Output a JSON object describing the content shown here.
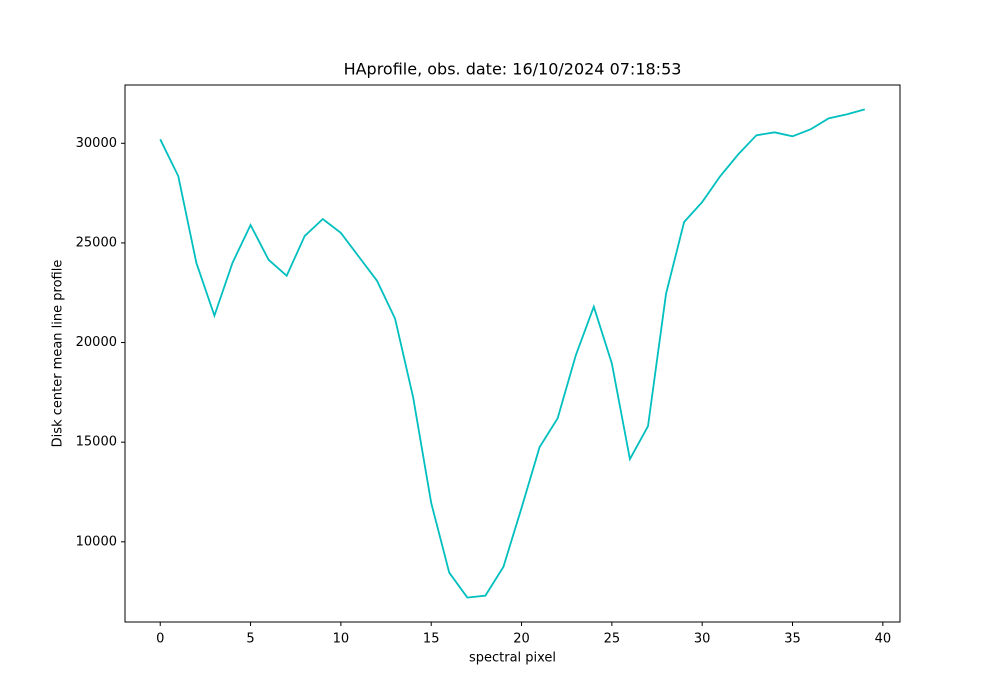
{
  "chart_data": {
    "type": "line",
    "title": "HAprofile, obs. date: 16/10/2024 07:18:53",
    "x_label": "spectral pixel",
    "y_label": "Disk center mean line profile",
    "x": [
      0,
      1,
      2,
      3,
      4,
      5,
      6,
      7,
      8,
      9,
      10,
      11,
      12,
      13,
      14,
      15,
      16,
      17,
      18,
      19,
      20,
      21,
      22,
      23,
      24,
      25,
      26,
      27,
      28,
      29,
      30,
      31,
      32,
      33,
      34,
      35,
      36,
      37,
      38,
      39
    ],
    "values": [
      30200,
      28350,
      24000,
      21350,
      24000,
      25900,
      24150,
      23350,
      25350,
      26200,
      25500,
      24300,
      23100,
      21200,
      17250,
      11950,
      8450,
      7200,
      7300,
      8750,
      11700,
      14750,
      16200,
      19350,
      21800,
      18950,
      14150,
      15800,
      22450,
      26050,
      27050,
      28350,
      29450,
      30400,
      30550,
      30350,
      30700,
      31250,
      31450,
      31700
    ],
    "color": "#00bfbf",
    "xlim": [
      -1.95,
      40.95
    ],
    "ylim": [
      5975,
      32925
    ],
    "xticks": [
      0,
      5,
      10,
      15,
      20,
      25,
      30,
      35,
      40
    ],
    "yticks": [
      10000,
      15000,
      20000,
      25000,
      30000
    ],
    "grid": false
  }
}
